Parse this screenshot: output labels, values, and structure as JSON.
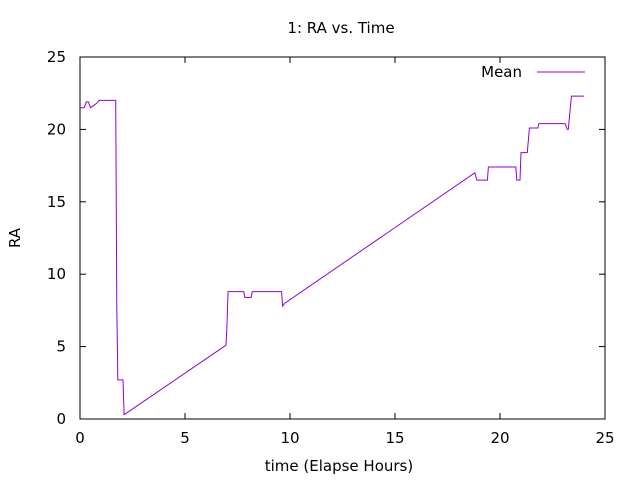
{
  "chart_data": {
    "type": "line",
    "title": "1: RA vs. Time",
    "xlabel": "time (Elapse Hours)",
    "ylabel": "RA",
    "xlim": [
      0,
      25
    ],
    "ylim": [
      0,
      25
    ],
    "xticks": [
      0,
      5,
      10,
      15,
      20,
      25
    ],
    "yticks": [
      0,
      5,
      10,
      15,
      20,
      25
    ],
    "grid": false,
    "legend_position": "top-right",
    "series": [
      {
        "name": "Mean",
        "color": "#9400d3",
        "x": [
          0,
          0.2,
          0.3,
          0.4,
          0.5,
          0.6,
          0.8,
          0.9,
          1.0,
          1.7,
          1.72,
          1.75,
          1.78,
          1.8,
          2.05,
          2.1,
          6.95,
          7.0,
          7.05,
          7.1,
          7.8,
          7.85,
          8.15,
          8.2,
          9.6,
          9.65,
          9.75,
          18.8,
          18.9,
          19.0,
          19.4,
          19.45,
          20.75,
          20.8,
          20.95,
          21.0,
          21.05,
          21.3,
          21.4,
          21.5,
          21.8,
          21.85,
          23.0,
          23.1,
          23.2,
          23.25,
          23.4,
          24.0
        ],
        "y": [
          21.5,
          21.5,
          21.9,
          21.9,
          21.5,
          21.6,
          21.8,
          22.0,
          22.0,
          22.0,
          17.0,
          7.5,
          5.0,
          2.7,
          2.7,
          0.3,
          5.1,
          6.5,
          8.8,
          8.8,
          8.8,
          8.4,
          8.4,
          8.8,
          8.8,
          7.8,
          8.0,
          17.0,
          16.5,
          16.5,
          16.5,
          17.4,
          17.4,
          16.5,
          16.5,
          18.4,
          18.4,
          18.4,
          20.1,
          20.1,
          20.1,
          20.4,
          20.4,
          20.4,
          20.0,
          20.0,
          22.3,
          22.3
        ]
      }
    ]
  }
}
